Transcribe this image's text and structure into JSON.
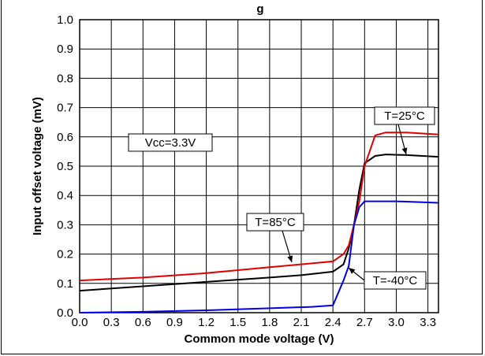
{
  "chart_data": {
    "type": "line",
    "title": "g",
    "xlabel": "Common mode voltage (V)",
    "ylabel": "Input offset voltage (mV)",
    "xlim": [
      0,
      3.4
    ],
    "ylim": [
      0,
      1.0
    ],
    "xticks": [
      "0.0",
      "0.3",
      "0.6",
      "0.9",
      "1.2",
      "1.5",
      "1.8",
      "2.1",
      "2.4",
      "2.7",
      "3.0",
      "3.3"
    ],
    "yticks": [
      "0.0",
      "0.1",
      "0.2",
      "0.3",
      "0.4",
      "0.5",
      "0.6",
      "0.7",
      "0.8",
      "0.9",
      "1.0"
    ],
    "grid": true,
    "series": [
      {
        "name": "T=25°C",
        "color": "#000000",
        "points": [
          [
            0,
            0.075
          ],
          [
            0.6,
            0.09
          ],
          [
            1.2,
            0.105
          ],
          [
            1.8,
            0.12
          ],
          [
            2.1,
            0.128
          ],
          [
            2.4,
            0.14
          ],
          [
            2.5,
            0.165
          ],
          [
            2.55,
            0.22
          ],
          [
            2.6,
            0.3
          ],
          [
            2.65,
            0.42
          ],
          [
            2.7,
            0.51
          ],
          [
            2.8,
            0.535
          ],
          [
            2.9,
            0.54
          ],
          [
            3.1,
            0.538
          ],
          [
            3.4,
            0.532
          ]
        ]
      },
      {
        "name": "T=85°C",
        "color": "#e00000",
        "points": [
          [
            0,
            0.11
          ],
          [
            0.6,
            0.12
          ],
          [
            1.2,
            0.135
          ],
          [
            1.8,
            0.155
          ],
          [
            2.1,
            0.165
          ],
          [
            2.4,
            0.175
          ],
          [
            2.5,
            0.2
          ],
          [
            2.55,
            0.23
          ],
          [
            2.6,
            0.3
          ],
          [
            2.65,
            0.38
          ],
          [
            2.7,
            0.5
          ],
          [
            2.8,
            0.605
          ],
          [
            2.9,
            0.615
          ],
          [
            3.1,
            0.615
          ],
          [
            3.4,
            0.608
          ]
        ]
      },
      {
        "name": "T=-40°C",
        "color": "#0000e0",
        "points": [
          [
            0,
            0.0
          ],
          [
            0.6,
            0.003
          ],
          [
            1.2,
            0.008
          ],
          [
            1.8,
            0.015
          ],
          [
            2.2,
            0.02
          ],
          [
            2.4,
            0.025
          ],
          [
            2.5,
            0.11
          ],
          [
            2.55,
            0.16
          ],
          [
            2.6,
            0.3
          ],
          [
            2.65,
            0.36
          ],
          [
            2.7,
            0.38
          ],
          [
            3.0,
            0.38
          ],
          [
            3.4,
            0.375
          ]
        ]
      }
    ],
    "annotations": [
      {
        "text": "Vcc=3.3V"
      },
      {
        "text": "T=25°C"
      },
      {
        "text": "T=85°C"
      },
      {
        "text": "T=-40°C"
      }
    ]
  }
}
